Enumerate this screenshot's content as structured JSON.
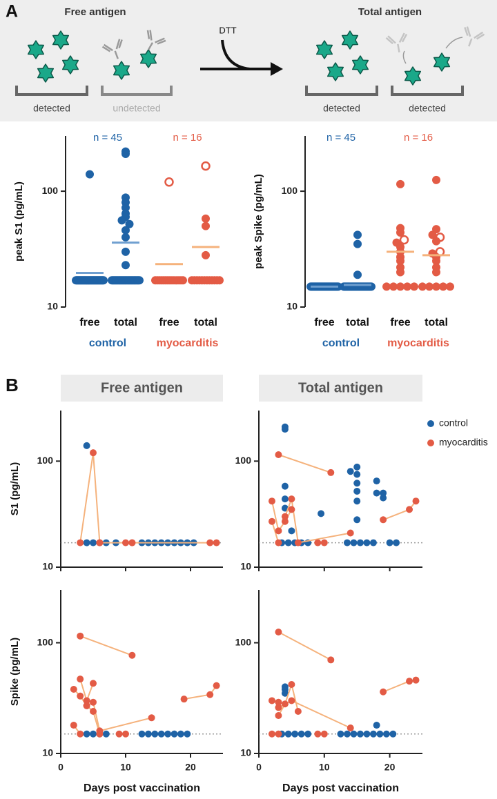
{
  "panel_labels": [
    "A",
    "B"
  ],
  "schematic": {
    "left_title": "Free antigen",
    "right_title": "Total antigen",
    "reagent": "DTT",
    "labels": [
      "detected",
      "undetected",
      "detected",
      "detected"
    ]
  },
  "chart_data": [
    {
      "type": "strip",
      "y_label": "peak S1 (pg/mL)",
      "log_scale": true,
      "ylim": [
        10,
        300
      ],
      "yticks": [
        10,
        100
      ],
      "groups": [
        {
          "name": "control",
          "n_label": "n = 45",
          "color": "#1f63a6",
          "line_color": "#6f9fd0",
          "categories": [
            {
              "name": "free",
              "center_line": 19.7,
              "open_values": [],
              "values": [
                140,
                17,
                17,
                17,
                17,
                17,
                17,
                17,
                17,
                17,
                17,
                17,
                17,
                17,
                17,
                17,
                17,
                17,
                17,
                17,
                17,
                17,
                17,
                17,
                17,
                17,
                17,
                17,
                17,
                17,
                17,
                17,
                17,
                17,
                17,
                17,
                17,
                17,
                17,
                17,
                17,
                17,
                17,
                17,
                17
              ]
            },
            {
              "name": "total",
              "center_line": 36,
              "open_values": [],
              "values": [
                220,
                210,
                88,
                80,
                72,
                64,
                60,
                56,
                52,
                46,
                40,
                30,
                23,
                17,
                17,
                17,
                17,
                17,
                17,
                17,
                17,
                17,
                17,
                17,
                17,
                17,
                17,
                17,
                17,
                17,
                17,
                17,
                17,
                17,
                17,
                17,
                17,
                17,
                17,
                17,
                17,
                17,
                17,
                17,
                17
              ]
            }
          ]
        },
        {
          "name": "myocarditis",
          "n_label": "n = 16",
          "color": "#e35b45",
          "line_color": "#f5b27c",
          "categories": [
            {
              "name": "free",
              "center_line": 23.5,
              "open_values": [
                120
              ],
              "values": [
                17,
                17,
                17,
                17,
                17,
                17,
                17,
                17,
                17,
                17,
                17,
                17,
                17,
                17,
                17
              ]
            },
            {
              "name": "total",
              "center_line": 33,
              "open_values": [
                165
              ],
              "values": [
                58,
                50,
                28,
                17,
                17,
                17,
                17,
                17,
                17,
                17,
                17,
                17,
                17,
                17,
                17
              ]
            }
          ]
        }
      ]
    },
    {
      "type": "strip",
      "y_label": "peak Spike (pg/mL)",
      "log_scale": true,
      "ylim": [
        10,
        300
      ],
      "yticks": [
        10,
        100
      ],
      "groups": [
        {
          "name": "control",
          "n_label": "n = 45",
          "color": "#1f63a6",
          "line_color": "#6f9fd0",
          "categories": [
            {
              "name": "free",
              "center_line": 15,
              "open_values": [],
              "values": [
                15,
                15,
                15,
                15,
                15,
                15,
                15,
                15,
                15,
                15,
                15,
                15,
                15,
                15,
                15,
                15,
                15,
                15,
                15,
                15,
                15,
                15,
                15,
                15,
                15,
                15,
                15,
                15,
                15,
                15,
                15,
                15,
                15,
                15,
                15,
                15,
                15,
                15,
                15,
                15,
                15,
                15,
                15,
                15,
                15
              ]
            },
            {
              "name": "total",
              "center_line": 15.5,
              "open_values": [],
              "values": [
                42,
                35,
                19,
                15,
                15,
                15,
                15,
                15,
                15,
                15,
                15,
                15,
                15,
                15,
                15,
                15,
                15,
                15,
                15,
                15,
                15,
                15,
                15,
                15,
                15,
                15,
                15,
                15,
                15,
                15,
                15,
                15,
                15,
                15,
                15,
                15,
                15,
                15,
                15,
                15,
                15,
                15,
                15,
                15,
                15
              ]
            }
          ]
        },
        {
          "name": "myocarditis",
          "n_label": "n = 16",
          "color": "#e35b45",
          "line_color": "#f5b27c",
          "categories": [
            {
              "name": "free",
              "center_line": 30,
              "open_values": [
                38
              ],
              "values": [
                115,
                48,
                44,
                36,
                33,
                30,
                27,
                25,
                22,
                20,
                15,
                15,
                15,
                15,
                15
              ]
            },
            {
              "name": "total",
              "center_line": 28,
              "open_values": [
                40,
                30
              ],
              "values": [
                125,
                47,
                42,
                37,
                29,
                27,
                25,
                22,
                20,
                15,
                15,
                15,
                15,
                15
              ]
            }
          ]
        }
      ]
    },
    {
      "type": "timecourse",
      "title": "Free antigen",
      "y_label": "S1 (pg/mL)",
      "log_scale": true,
      "xlim": [
        0,
        25
      ],
      "xticks": [
        0,
        10,
        20
      ],
      "show_x_tick_labels": false,
      "ylim": [
        10,
        300
      ],
      "yticks": [
        10,
        100
      ],
      "lod": 17,
      "legend": false,
      "series": [
        {
          "color": "#1f63a6",
          "x": [
            4,
            4,
            5,
            6,
            7,
            8.5,
            12.5,
            13.5,
            14.5,
            15.5,
            16.5,
            17.5,
            18.5,
            19.5,
            20.5
          ],
          "values": [
            140,
            17,
            17,
            17,
            17,
            17,
            17,
            17,
            17,
            17,
            17,
            17,
            17,
            17,
            17
          ]
        },
        {
          "color": "#e35b45",
          "line_color": "#f5b27c",
          "subjects": [
            {
              "x": [
                3,
                5,
                6
              ],
              "values": [
                17,
                120,
                17
              ]
            },
            {
              "x": [
                6,
                10,
                11
              ],
              "values": [
                17,
                17,
                17
              ]
            },
            {
              "x": [
                11,
                23,
                24
              ],
              "values": [
                17,
                17,
                17
              ]
            }
          ]
        }
      ]
    },
    {
      "type": "timecourse",
      "title": "Total antigen",
      "log_scale": true,
      "xlim": [
        0,
        25
      ],
      "xticks": [
        0,
        10,
        20
      ],
      "show_x_tick_labels": false,
      "ylim": [
        10,
        300
      ],
      "yticks": [
        10,
        100
      ],
      "lod": 17,
      "legend": true,
      "series": [
        {
          "name": "control",
          "color": "#1f63a6",
          "x": [
            4,
            4,
            4,
            4,
            4,
            5,
            9.5,
            14,
            15,
            15,
            15,
            15,
            15,
            15,
            18,
            18,
            19,
            19,
            3.5,
            4.5,
            5.5,
            6.5,
            7.5,
            13.5,
            14.5,
            15.5,
            16.5,
            17.5,
            20,
            21
          ],
          "values": [
            210,
            200,
            58,
            44,
            36,
            22,
            32,
            80,
            88,
            75,
            62,
            52,
            42,
            28,
            65,
            50,
            45,
            50,
            17,
            17,
            17,
            17,
            17,
            17,
            17,
            17,
            17,
            17,
            17,
            17
          ]
        },
        {
          "name": "myocarditis",
          "color": "#e35b45",
          "line_color": "#f5b27c",
          "subjects": [
            {
              "x": [
                3,
                11
              ],
              "values": [
                115,
                78
              ]
            },
            {
              "x": [
                2,
                3,
                4,
                5
              ],
              "values": [
                42,
                22,
                27,
                35
              ]
            },
            {
              "x": [
                4,
                5,
                6,
                14
              ],
              "values": [
                30,
                44,
                17,
                21
              ]
            },
            {
              "x": [
                2,
                3
              ],
              "values": [
                27,
                17
              ]
            },
            {
              "x": [
                9,
                10
              ],
              "values": [
                17,
                17
              ]
            },
            {
              "x": [
                19,
                23,
                24
              ],
              "values": [
                28,
                35,
                42
              ]
            }
          ]
        }
      ]
    },
    {
      "type": "timecourse",
      "y_label": "Spike (pg/mL)",
      "x_label": "Days post vaccination",
      "log_scale": true,
      "xlim": [
        0,
        25
      ],
      "xticks": [
        0,
        10,
        20
      ],
      "show_x_tick_labels": true,
      "ylim": [
        10,
        300
      ],
      "yticks": [
        10,
        100
      ],
      "lod": 15,
      "legend": false,
      "series": [
        {
          "color": "#1f63a6",
          "x": [
            4,
            5,
            6,
            7,
            12.5,
            13.5,
            14.5,
            15.5,
            16.5,
            17.5,
            18.5,
            19.5
          ],
          "values": [
            15,
            15,
            15,
            15,
            15,
            15,
            15,
            15,
            15,
            15,
            15,
            15
          ]
        },
        {
          "color": "#e35b45",
          "line_color": "#f5b27c",
          "subjects": [
            {
              "x": [
                3,
                11
              ],
              "values": [
                115,
                77
              ]
            },
            {
              "x": [
                2,
                3,
                4,
                5,
                6
              ],
              "values": [
                38,
                33,
                27,
                24,
                15
              ]
            },
            {
              "x": [
                3,
                4,
                5
              ],
              "values": [
                47,
                30,
                43
              ]
            },
            {
              "x": [
                4,
                5,
                6,
                14
              ],
              "values": [
                27,
                29,
                16,
                21
              ]
            },
            {
              "x": [
                2,
                3
              ],
              "values": [
                18,
                15
              ]
            },
            {
              "x": [
                9,
                10
              ],
              "values": [
                15,
                15
              ]
            },
            {
              "x": [
                19,
                23,
                24
              ],
              "values": [
                31,
                34,
                41
              ]
            }
          ]
        }
      ]
    },
    {
      "type": "timecourse",
      "x_label": "Days post vaccination",
      "log_scale": true,
      "xlim": [
        0,
        25
      ],
      "xticks": [
        0,
        10,
        20
      ],
      "show_x_tick_labels": true,
      "ylim": [
        10,
        300
      ],
      "yticks": [
        10,
        100
      ],
      "lod": 15,
      "legend": false,
      "series": [
        {
          "color": "#1f63a6",
          "x": [
            4,
            4,
            4,
            18,
            3.5,
            4.5,
            5.5,
            6.5,
            7.5,
            12.5,
            13.5,
            14.5,
            15.5,
            16.5,
            17.5,
            18.5,
            19.5,
            20.5
          ],
          "values": [
            40,
            38,
            35,
            18,
            15,
            15,
            15,
            15,
            15,
            15,
            15,
            15,
            15,
            15,
            15,
            15,
            15,
            15
          ]
        },
        {
          "color": "#e35b45",
          "line_color": "#f5b27c",
          "subjects": [
            {
              "x": [
                3,
                11
              ],
              "values": [
                125,
                70
              ]
            },
            {
              "x": [
                2,
                3
              ],
              "values": [
                30,
                29
              ]
            },
            {
              "x": [
                3,
                4,
                5,
                6
              ],
              "values": [
                22,
                28,
                42,
                24
              ]
            },
            {
              "x": [
                3,
                5,
                14
              ],
              "values": [
                26,
                30,
                17
              ]
            },
            {
              "x": [
                2,
                3
              ],
              "values": [
                15,
                15
              ]
            },
            {
              "x": [
                9,
                10
              ],
              "values": [
                15,
                15
              ]
            },
            {
              "x": [
                19,
                23,
                24
              ],
              "values": [
                36,
                45,
                46
              ]
            }
          ]
        }
      ]
    }
  ]
}
